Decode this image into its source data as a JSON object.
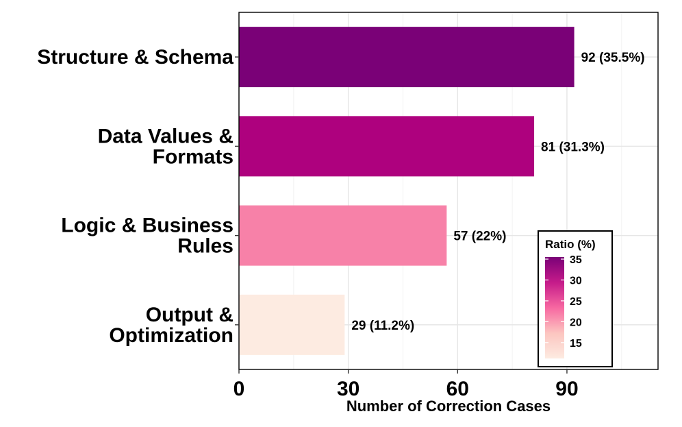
{
  "chart_data": {
    "type": "bar",
    "orientation": "horizontal",
    "categories": [
      "Structure & Schema",
      "Data Values & Formats",
      "Logic & Business Rules",
      "Output & Optimization"
    ],
    "category_label_lines": [
      [
        "Structure & Schema"
      ],
      [
        "Data Values &",
        "Formats"
      ],
      [
        "Logic & Business",
        "Rules"
      ],
      [
        "Output &",
        "Optimization"
      ]
    ],
    "values": [
      92,
      81,
      57,
      29
    ],
    "ratios": [
      35.5,
      31.3,
      22,
      11.2
    ],
    "data_labels": [
      "92 (35.5%)",
      "81 (31.3%)",
      "57 (22%)",
      "29 (11.2%)"
    ],
    "colors": [
      "#7a0177",
      "#ae017e",
      "#f781a8",
      "#fdebe1"
    ],
    "xlabel": "Number of Correction Cases",
    "ylabel": "",
    "xlim": [
      0,
      115
    ],
    "x_ticks": [
      0,
      30,
      60,
      90
    ],
    "x_tick_labels": [
      "0",
      "30",
      "60",
      "90"
    ],
    "grid": true,
    "legend": {
      "title": "Ratio (%)",
      "placement": "bottom-right",
      "ticks": [
        35,
        30,
        25,
        20,
        15
      ],
      "tick_labels": [
        "35",
        "30",
        "25",
        "20",
        "15"
      ],
      "range": [
        11.2,
        35.5
      ],
      "gradient_colors": [
        "#fdebe1",
        "#fcc5c0",
        "#f768a1",
        "#c51b8a",
        "#7a0177"
      ]
    }
  }
}
